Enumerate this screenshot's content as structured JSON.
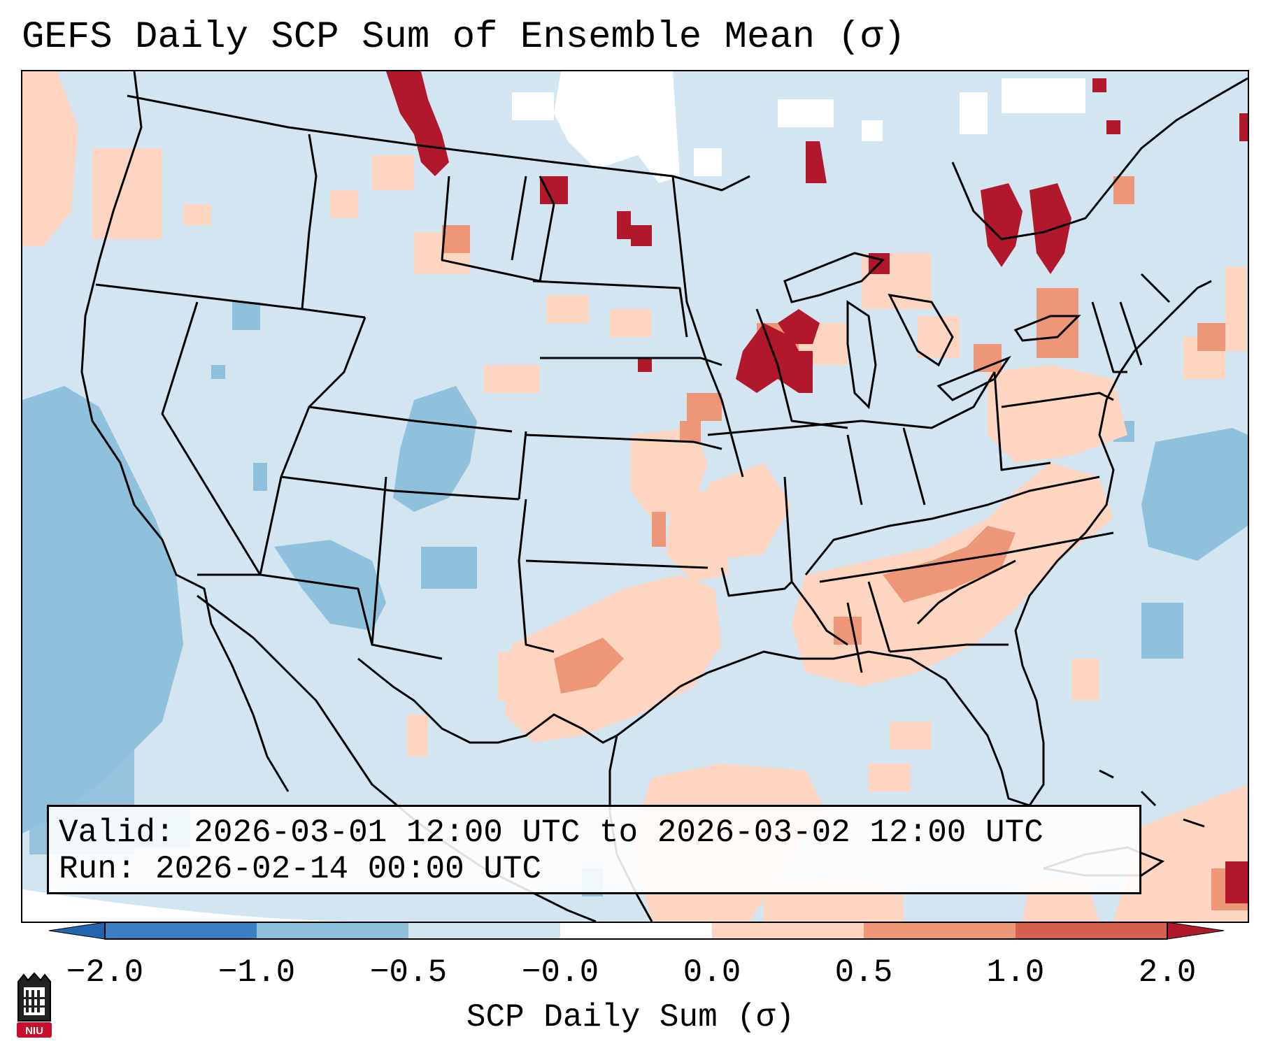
{
  "title": "GEFS Daily SCP Sum of Ensemble Mean (σ)",
  "info": {
    "valid": "Valid: 2026-03-01 12:00 UTC to 2026-03-02 12:00 UTC",
    "run": "Run:   2026-02-14 00:00 UTC"
  },
  "colorbar": {
    "label": "SCP Daily Sum (σ)",
    "ticks": [
      "−2.0",
      "−1.0",
      "−0.5",
      "−0.0",
      "0.0",
      "0.5",
      "1.0",
      "2.0"
    ],
    "bin_colors": [
      "#3a7fc1",
      "#8fc0dc",
      "#d2e5f1",
      "#ffffff",
      "#fdd5c0",
      "#ee9778",
      "#d6604d"
    ],
    "extend_low_color": "#2166ac",
    "extend_high_color": "#b2182b"
  },
  "map": {
    "base_color": "#d2e5f1",
    "regions": [
      "Pacific Ocean",
      "Canada",
      "United States",
      "Mexico",
      "Gulf of Mexico",
      "Atlantic Ocean",
      "Cuba"
    ]
  },
  "logo": {
    "text": "NIU",
    "color": "#c8102e"
  }
}
